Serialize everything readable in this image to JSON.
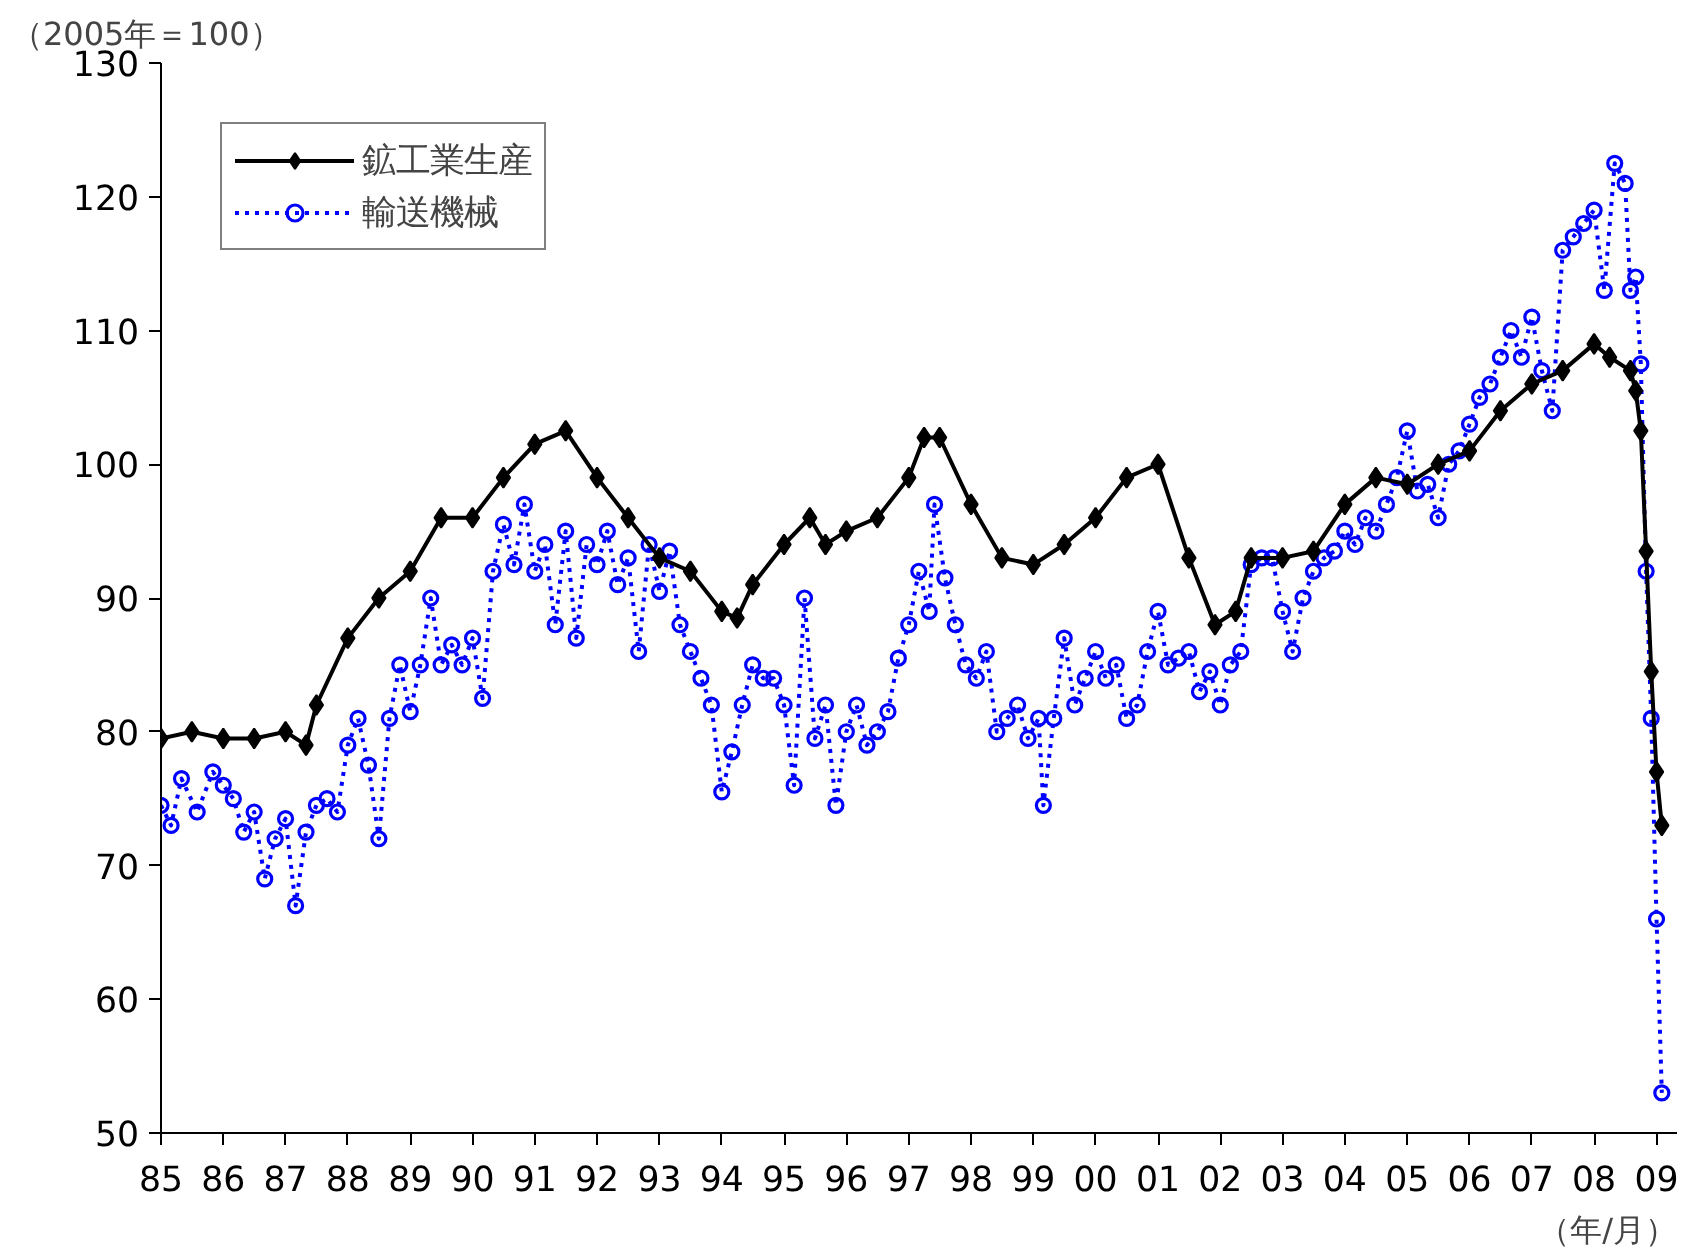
{
  "chart_data": {
    "type": "line",
    "annotations": [
      "（2005年＝100）",
      "（年/月）"
    ],
    "xlim": [
      "1985-01",
      "2009-05"
    ],
    "xticks": [
      {
        "value": "1985-01",
        "label": "85"
      },
      {
        "value": "1986-01",
        "label": "86"
      },
      {
        "value": "1987-01",
        "label": "87"
      },
      {
        "value": "1988-01",
        "label": "88"
      },
      {
        "value": "1989-01",
        "label": "89"
      },
      {
        "value": "1990-01",
        "label": "90"
      },
      {
        "value": "1991-01",
        "label": "91"
      },
      {
        "value": "1992-01",
        "label": "92"
      },
      {
        "value": "1993-01",
        "label": "93"
      },
      {
        "value": "1994-01",
        "label": "94"
      },
      {
        "value": "1995-01",
        "label": "95"
      },
      {
        "value": "1996-01",
        "label": "96"
      },
      {
        "value": "1997-01",
        "label": "97"
      },
      {
        "value": "1998-01",
        "label": "98"
      },
      {
        "value": "1999-01",
        "label": "99"
      },
      {
        "value": "2000-01",
        "label": "00"
      },
      {
        "value": "2001-01",
        "label": "01"
      },
      {
        "value": "2002-01",
        "label": "02"
      },
      {
        "value": "2003-01",
        "label": "03"
      },
      {
        "value": "2004-01",
        "label": "04"
      },
      {
        "value": "2005-01",
        "label": "05"
      },
      {
        "value": "2006-01",
        "label": "06"
      },
      {
        "value": "2007-01",
        "label": "07"
      },
      {
        "value": "2008-01",
        "label": "08"
      },
      {
        "value": "2009-01",
        "label": "09"
      }
    ],
    "ylim": [
      50,
      130
    ],
    "yticks": [
      50,
      60,
      70,
      80,
      90,
      100,
      110,
      120,
      130
    ],
    "grid": false,
    "legend": "top left",
    "series": [
      {
        "name": "鉱工業生産",
        "color": "#000000",
        "marker": "diamond",
        "line_style": "solid",
        "x": [
          "1985-01",
          "1985-07",
          "1986-01",
          "1986-07",
          "1987-01",
          "1987-05",
          "1987-07",
          "1988-01",
          "1988-07",
          "1989-01",
          "1989-07",
          "1990-01",
          "1990-07",
          "1991-01",
          "1991-07",
          "1992-01",
          "1992-07",
          "1993-01",
          "1993-07",
          "1994-01",
          "1994-04",
          "1994-07",
          "1995-01",
          "1995-06",
          "1995-09",
          "1996-01",
          "1996-07",
          "1997-01",
          "1997-04",
          "1997-07",
          "1998-01",
          "1998-07",
          "1999-01",
          "1999-07",
          "2000-01",
          "2000-07",
          "2001-01",
          "2001-07",
          "2001-12",
          "2002-04",
          "2002-07",
          "2003-01",
          "2003-07",
          "2004-01",
          "2004-07",
          "2005-01",
          "2005-07",
          "2006-01",
          "2006-07",
          "2007-01",
          "2007-07",
          "2008-01",
          "2008-04",
          "2008-08",
          "2008-09",
          "2008-10",
          "2008-11",
          "2008-12",
          "2009-01",
          "2009-02"
        ],
        "values": [
          79.5,
          80,
          79.5,
          79.5,
          80,
          79,
          82,
          87,
          90,
          92,
          96,
          96,
          99,
          101.5,
          102.5,
          99,
          96,
          93,
          92,
          89,
          88.5,
          91,
          94,
          96,
          94,
          95,
          96,
          99,
          102,
          102,
          97,
          93,
          92.5,
          94,
          96,
          99,
          100,
          93,
          88,
          89,
          93,
          93,
          93.5,
          97,
          99,
          98.5,
          100,
          101,
          104,
          106,
          107,
          109,
          108,
          107,
          105.5,
          102.5,
          93.5,
          84.5,
          77,
          73
        ]
      },
      {
        "name": "輸送機械",
        "color": "#0000ff",
        "marker": "circle",
        "line_style": "dotted",
        "x": [
          "1985-01",
          "1985-03",
          "1985-05",
          "1985-08",
          "1985-11",
          "1986-01",
          "1986-03",
          "1986-05",
          "1986-07",
          "1986-09",
          "1986-11",
          "1987-01",
          "1987-03",
          "1987-05",
          "1987-07",
          "1987-09",
          "1987-11",
          "1988-01",
          "1988-03",
          "1988-05",
          "1988-07",
          "1988-09",
          "1988-11",
          "1989-01",
          "1989-03",
          "1989-05",
          "1989-07",
          "1989-09",
          "1989-11",
          "1990-01",
          "1990-03",
          "1990-05",
          "1990-07",
          "1990-09",
          "1990-11",
          "1991-01",
          "1991-03",
          "1991-05",
          "1991-07",
          "1991-09",
          "1991-11",
          "1992-01",
          "1992-03",
          "1992-05",
          "1992-07",
          "1992-09",
          "1992-11",
          "1993-01",
          "1993-03",
          "1993-05",
          "1993-07",
          "1993-09",
          "1993-11",
          "1994-01",
          "1994-03",
          "1994-05",
          "1994-07",
          "1994-09",
          "1994-11",
          "1995-01",
          "1995-03",
          "1995-05",
          "1995-07",
          "1995-09",
          "1995-11",
          "1996-01",
          "1996-03",
          "1996-05",
          "1996-07",
          "1996-09",
          "1996-11",
          "1997-01",
          "1997-03",
          "1997-05",
          "1997-06",
          "1997-08",
          "1997-10",
          "1997-12",
          "1998-02",
          "1998-04",
          "1998-06",
          "1998-08",
          "1998-10",
          "1998-12",
          "1999-02",
          "1999-03",
          "1999-05",
          "1999-07",
          "1999-09",
          "1999-11",
          "2000-01",
          "2000-03",
          "2000-05",
          "2000-07",
          "2000-09",
          "2000-11",
          "2001-01",
          "2001-03",
          "2001-05",
          "2001-07",
          "2001-09",
          "2001-11",
          "2002-01",
          "2002-03",
          "2002-05",
          "2002-07",
          "2002-09",
          "2002-11",
          "2003-01",
          "2003-03",
          "2003-05",
          "2003-07",
          "2003-09",
          "2003-11",
          "2004-01",
          "2004-03",
          "2004-05",
          "2004-07",
          "2004-09",
          "2004-11",
          "2005-01",
          "2005-03",
          "2005-05",
          "2005-07",
          "2005-09",
          "2005-11",
          "2006-01",
          "2006-03",
          "2006-05",
          "2006-07",
          "2006-09",
          "2006-11",
          "2007-01",
          "2007-03",
          "2007-05",
          "2007-07",
          "2007-09",
          "2007-11",
          "2008-01",
          "2008-03",
          "2008-05",
          "2008-07",
          "2008-08",
          "2008-09",
          "2008-10",
          "2008-11",
          "2008-12",
          "2009-01",
          "2009-02"
        ],
        "values": [
          74.5,
          73,
          76.5,
          74,
          77,
          76,
          75,
          72.5,
          74,
          69,
          72,
          73.5,
          67,
          72.5,
          74.5,
          75,
          74,
          79,
          81,
          77.5,
          72,
          81,
          85,
          81.5,
          85,
          90,
          85,
          86.5,
          85,
          87,
          82.5,
          92,
          95.5,
          92.5,
          97,
          92,
          94,
          88,
          95,
          87,
          94,
          92.5,
          95,
          91,
          93,
          86,
          94,
          90.5,
          93.5,
          88,
          86,
          84,
          82,
          75.5,
          78.5,
          82,
          85,
          84,
          84,
          82,
          76,
          90,
          79.5,
          82,
          74.5,
          80,
          82,
          79,
          80,
          81.5,
          85.5,
          88,
          92,
          89,
          97,
          91.5,
          88,
          85,
          84,
          86,
          80,
          81,
          82,
          79.5,
          81,
          74.5,
          81,
          87,
          82,
          84,
          86,
          84,
          85,
          81,
          82,
          86,
          89,
          85,
          85.5,
          86,
          83,
          84.5,
          82,
          85,
          86,
          92.5,
          93,
          93,
          89,
          86,
          90,
          92,
          93,
          93.5,
          95,
          94,
          96,
          95,
          97,
          99,
          102.5,
          98,
          98.5,
          96,
          100,
          101,
          103,
          105,
          106,
          108,
          110,
          108,
          111,
          107,
          104,
          116,
          117,
          118,
          119,
          113,
          122.5,
          121,
          113,
          114,
          107.5,
          92,
          81,
          66,
          53
        ]
      }
    ]
  }
}
